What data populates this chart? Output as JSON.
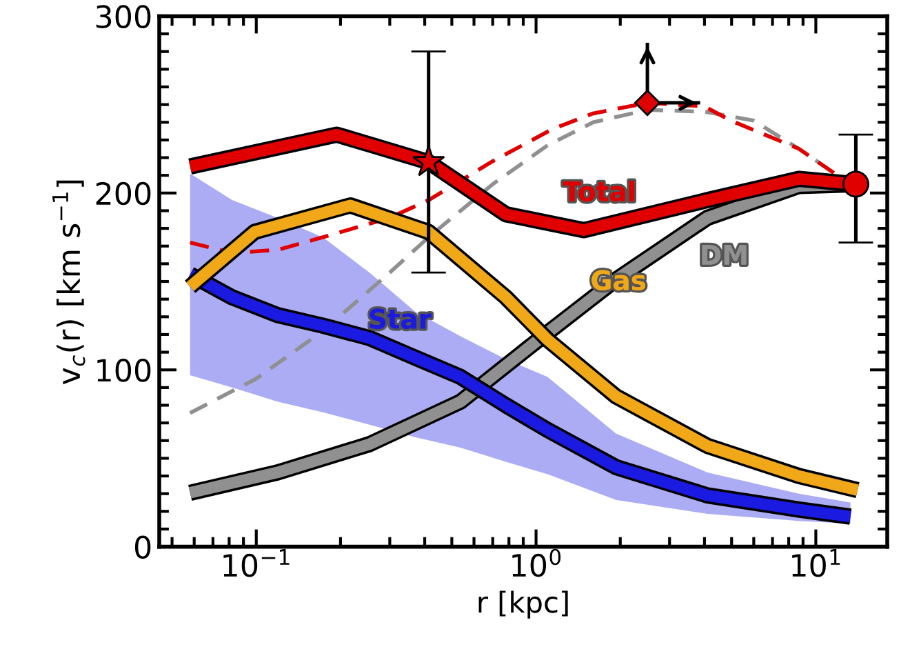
{
  "chart_data": {
    "type": "line",
    "xlabel": "r [kpc]",
    "ylabel": "v$_{c}$(r) [km s$^{−1}$]",
    "log": "x",
    "grid": false,
    "xlim": [
      0.045,
      18
    ],
    "xticks": [
      {
        "value": 0.1,
        "label": "10$^{−1}$"
      },
      {
        "value": 1,
        "label": "10$^{0}$"
      },
      {
        "value": 10,
        "label": "10$^{1}$"
      }
    ],
    "ylim": [
      0,
      300
    ],
    "yticks": [
      0,
      100,
      200,
      300
    ],
    "series": [
      {
        "color": "#909090",
        "line_style": "dashed",
        "x": [
          0.058,
          0.1,
          0.173,
          0.3,
          0.413,
          0.7,
          1.1,
          1.6,
          2.5,
          4.0,
          5.98,
          8.7,
          12.2
        ],
        "values": [
          75.6,
          95,
          122,
          155,
          175,
          205,
          227,
          240,
          247,
          246,
          241,
          225,
          209
        ]
      },
      {
        "color": "#e00000",
        "line_style": "dashed",
        "x": [
          0.058,
          0.082,
          0.12,
          0.173,
          0.3,
          0.413,
          0.7,
          1.14,
          1.6,
          2.5,
          4.0,
          4.96,
          8.7,
          12.2
        ],
        "values": [
          172,
          166,
          168,
          175,
          186,
          196,
          218,
          236,
          245,
          251,
          249,
          241,
          225,
          209
        ]
      },
      {
        "name": "DM",
        "color": "#909090",
        "x": [
          0.058,
          0.119,
          0.254,
          0.537,
          1.02,
          1.93,
          4.1,
          8.7,
          14.1
        ],
        "values": [
          30.5,
          42,
          58,
          82,
          117,
          151,
          186,
          204,
          205
        ]
      },
      {
        "name": "Star",
        "color": "#1a1ae0",
        "x": [
          0.058,
          0.082,
          0.119,
          0.173,
          0.254,
          0.369,
          0.537,
          0.78,
          1.1,
          1.93,
          4.1,
          8.7,
          13.3
        ],
        "values": [
          154,
          141,
          131,
          125,
          118,
          107,
          96,
          80,
          66,
          45,
          29,
          21,
          17
        ],
        "lower": [
          97,
          90,
          82,
          76,
          69,
          62,
          56,
          48,
          41,
          26.5,
          18.6,
          14.6,
          13
        ],
        "upper": [
          211,
          196,
          186,
          175,
          155,
          133,
          119,
          106,
          96,
          64,
          42,
          30,
          25
        ]
      },
      {
        "name": "Gas",
        "color": "#f0a818",
        "x": [
          0.058,
          0.0986,
          0.217,
          0.413,
          0.78,
          1.1,
          1.93,
          4.1,
          8.7,
          14.1
        ],
        "values": [
          147,
          178,
          193,
          178,
          141,
          117,
          85,
          57,
          40,
          32
        ]
      },
      {
        "name": "Total",
        "color": "#e00000",
        "x": [
          0.058,
          0.194,
          0.413,
          0.78,
          1.48,
          4.1,
          8.7,
          13.9
        ],
        "values": [
          215,
          233,
          217.5,
          188,
          179,
          196,
          208,
          205
        ]
      },
      {
        "type": "scatter",
        "color": "#e00000",
        "marker": "star",
        "x": [
          0.413
        ],
        "values": [
          217.5
        ],
        "errors": [
          [
            155,
            280
          ]
        ]
      },
      {
        "type": "scatter",
        "color": "#e00000",
        "marker": "circle",
        "x": [
          13.9
        ],
        "values": [
          205
        ],
        "errors": [
          [
            172,
            233
          ]
        ]
      },
      {
        "type": "scatter",
        "color": "#e00000",
        "marker": "diamond",
        "x": [
          2.5
        ],
        "values": [
          251
        ],
        "errors": [
          [
            251,
            285
          ]
        ],
        "xerrors": [
          [
            2.5,
            3.86
          ]
        ]
      }
    ]
  }
}
